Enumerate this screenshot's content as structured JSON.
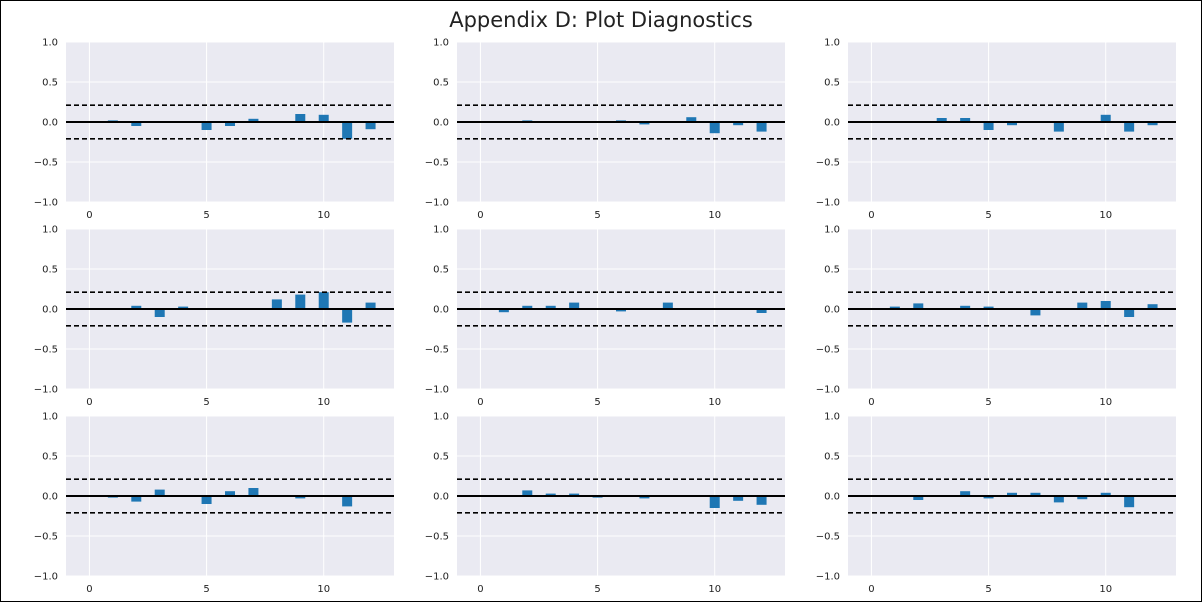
{
  "figure": {
    "title": "Appendix D: Plot Diagnostics"
  },
  "style": {
    "plot_bg": "#eaeaf2",
    "grid": "#ffffff",
    "bar": "#1f77b4",
    "zero_line": "#000000",
    "conf_line": "#000000",
    "tick_text": "#222222"
  },
  "chart_data": [
    {
      "type": "bar",
      "title": "",
      "x": [
        0,
        1,
        2,
        3,
        4,
        5,
        6,
        7,
        8,
        9,
        10,
        11,
        12
      ],
      "values": [
        0,
        0.02,
        -0.05,
        0.0,
        0.0,
        -0.1,
        -0.05,
        0.04,
        0.0,
        0.1,
        0.09,
        -0.21,
        -0.09
      ],
      "conf_band": 0.21,
      "xlim": [
        -1,
        13
      ],
      "ylim": [
        -1.0,
        1.0
      ],
      "xticks": [
        0,
        5,
        10
      ],
      "yticks": [
        1.0,
        0.5,
        0.0,
        -0.5,
        -1.0
      ],
      "xtick_labels": [
        "0",
        "5",
        "10"
      ],
      "ytick_labels": [
        "1.0",
        "0.5",
        "0.0",
        "−0.5",
        "−1.0"
      ],
      "grid": true
    },
    {
      "type": "bar",
      "title": "",
      "x": [
        0,
        1,
        2,
        3,
        4,
        5,
        6,
        7,
        8,
        9,
        10,
        11,
        12
      ],
      "values": [
        0,
        0.0,
        0.02,
        -0.01,
        0.01,
        0.0,
        0.02,
        -0.03,
        0.0,
        0.06,
        -0.14,
        -0.04,
        -0.12
      ],
      "conf_band": 0.21,
      "xlim": [
        -1,
        13
      ],
      "ylim": [
        -1.0,
        1.0
      ],
      "xticks": [
        0,
        5,
        10
      ],
      "yticks": [
        1.0,
        0.5,
        0.0,
        -0.5,
        -1.0
      ],
      "xtick_labels": [
        "0",
        "5",
        "10"
      ],
      "ytick_labels": [
        "1.0",
        "0.5",
        "0.0",
        "−0.5",
        "−1.0"
      ],
      "grid": true
    },
    {
      "type": "bar",
      "title": "",
      "x": [
        0,
        1,
        2,
        3,
        4,
        5,
        6,
        7,
        8,
        9,
        10,
        11,
        12
      ],
      "values": [
        0,
        0.0,
        0.0,
        0.05,
        0.05,
        -0.1,
        -0.04,
        -0.01,
        -0.12,
        -0.01,
        0.09,
        -0.12,
        -0.04
      ],
      "conf_band": 0.21,
      "xlim": [
        -1,
        13
      ],
      "ylim": [
        -1.0,
        1.0
      ],
      "xticks": [
        0,
        5,
        10
      ],
      "yticks": [
        1.0,
        0.5,
        0.0,
        -0.5,
        -1.0
      ],
      "xtick_labels": [
        "0",
        "5",
        "10"
      ],
      "ytick_labels": [
        "1.0",
        "0.5",
        "0.0",
        "−0.5",
        "−1.0"
      ],
      "grid": true
    },
    {
      "type": "bar",
      "title": "",
      "x": [
        0,
        1,
        2,
        3,
        4,
        5,
        6,
        7,
        8,
        9,
        10,
        11,
        12
      ],
      "values": [
        0,
        0.01,
        0.04,
        -0.1,
        0.03,
        0.01,
        0.0,
        0.01,
        0.12,
        0.18,
        0.21,
        -0.17,
        0.08
      ],
      "conf_band": 0.21,
      "xlim": [
        -1,
        13
      ],
      "ylim": [
        -1.0,
        1.0
      ],
      "xticks": [
        0,
        5,
        10
      ],
      "yticks": [
        1.0,
        0.5,
        0.0,
        -0.5,
        -1.0
      ],
      "xtick_labels": [
        "0",
        "5",
        "10"
      ],
      "ytick_labels": [
        "1.0",
        "0.5",
        "0.0",
        "−0.5",
        "−1.0"
      ],
      "grid": true
    },
    {
      "type": "bar",
      "title": "",
      "x": [
        0,
        1,
        2,
        3,
        4,
        5,
        6,
        7,
        8,
        9,
        10,
        11,
        12
      ],
      "values": [
        0,
        -0.04,
        0.04,
        0.04,
        0.08,
        -0.01,
        -0.03,
        -0.01,
        0.08,
        -0.01,
        -0.01,
        -0.01,
        -0.05
      ],
      "conf_band": 0.21,
      "xlim": [
        -1,
        13
      ],
      "ylim": [
        -1.0,
        1.0
      ],
      "xticks": [
        0,
        5,
        10
      ],
      "yticks": [
        1.0,
        0.5,
        0.0,
        -0.5,
        -1.0
      ],
      "xtick_labels": [
        "0",
        "5",
        "10"
      ],
      "ytick_labels": [
        "1.0",
        "0.5",
        "0.0",
        "−0.5",
        "−1.0"
      ],
      "grid": true
    },
    {
      "type": "bar",
      "title": "",
      "x": [
        0,
        1,
        2,
        3,
        4,
        5,
        6,
        7,
        8,
        9,
        10,
        11,
        12
      ],
      "values": [
        0,
        0.03,
        0.07,
        0.0,
        0.04,
        0.03,
        0.01,
        -0.08,
        0.0,
        0.08,
        0.1,
        -0.1,
        0.06
      ],
      "conf_band": 0.21,
      "xlim": [
        -1,
        13
      ],
      "ylim": [
        -1.0,
        1.0
      ],
      "xticks": [
        0,
        5,
        10
      ],
      "yticks": [
        1.0,
        0.5,
        0.0,
        -0.5,
        -1.0
      ],
      "xtick_labels": [
        "0",
        "5",
        "10"
      ],
      "ytick_labels": [
        "1.0",
        "0.5",
        "0.0",
        "−0.5",
        "−1.0"
      ],
      "grid": true
    },
    {
      "type": "bar",
      "title": "",
      "x": [
        0,
        1,
        2,
        3,
        4,
        5,
        6,
        7,
        8,
        9,
        10,
        11,
        12
      ],
      "values": [
        0,
        -0.02,
        -0.07,
        0.08,
        0.0,
        -0.1,
        0.06,
        0.1,
        0.0,
        -0.03,
        0.0,
        -0.13,
        0.01
      ],
      "conf_band": 0.21,
      "xlim": [
        -1,
        13
      ],
      "ylim": [
        -1.0,
        1.0
      ],
      "xticks": [
        0,
        5,
        10
      ],
      "yticks": [
        1.0,
        0.5,
        0.0,
        -0.5,
        -1.0
      ],
      "xtick_labels": [
        "0",
        "5",
        "10"
      ],
      "ytick_labels": [
        "1.0",
        "0.5",
        "0.0",
        "−0.5",
        "−1.0"
      ],
      "grid": true
    },
    {
      "type": "bar",
      "title": "",
      "x": [
        0,
        1,
        2,
        3,
        4,
        5,
        6,
        7,
        8,
        9,
        10,
        11,
        12
      ],
      "values": [
        0,
        0.01,
        0.07,
        0.03,
        0.03,
        -0.02,
        0.01,
        -0.03,
        0.0,
        -0.01,
        -0.15,
        -0.06,
        -0.11
      ],
      "conf_band": 0.21,
      "xlim": [
        -1,
        13
      ],
      "ylim": [
        -1.0,
        1.0
      ],
      "xticks": [
        0,
        5,
        10
      ],
      "yticks": [
        1.0,
        0.5,
        0.0,
        -0.5,
        -1.0
      ],
      "xtick_labels": [
        "0",
        "5",
        "10"
      ],
      "ytick_labels": [
        "1.0",
        "0.5",
        "0.0",
        "−0.5",
        "−1.0"
      ],
      "grid": true
    },
    {
      "type": "bar",
      "title": "",
      "x": [
        0,
        1,
        2,
        3,
        4,
        5,
        6,
        7,
        8,
        9,
        10,
        11,
        12
      ],
      "values": [
        0,
        -0.01,
        -0.05,
        0.0,
        0.06,
        -0.03,
        0.04,
        0.04,
        -0.08,
        -0.04,
        0.04,
        -0.14,
        -0.01
      ],
      "conf_band": 0.21,
      "xlim": [
        -1,
        13
      ],
      "ylim": [
        -1.0,
        1.0
      ],
      "xticks": [
        0,
        5,
        10
      ],
      "yticks": [
        1.0,
        0.5,
        0.0,
        -0.5,
        -1.0
      ],
      "xtick_labels": [
        "0",
        "5",
        "10"
      ],
      "ytick_labels": [
        "1.0",
        "0.5",
        "0.0",
        "−0.5",
        "−1.0"
      ],
      "grid": true
    }
  ]
}
